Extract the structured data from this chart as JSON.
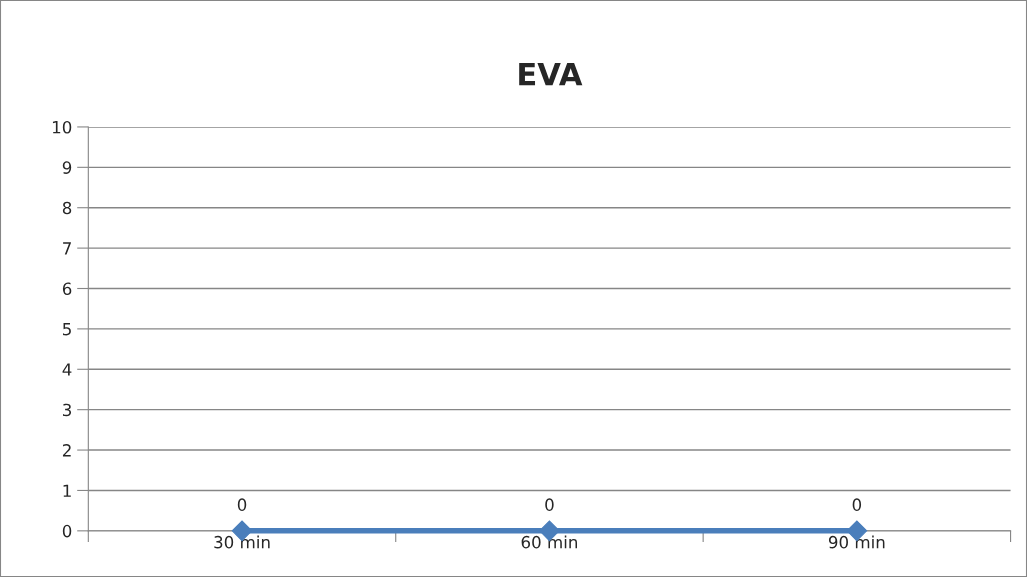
{
  "chart_data": {
    "type": "line",
    "title": "EVA",
    "categories": [
      "30 min",
      "60 min",
      "90 min"
    ],
    "series": [
      {
        "color": "#4a7ebb",
        "values": [
          0,
          0,
          0
        ]
      }
    ],
    "ylim": [
      0,
      10
    ],
    "yticks": [
      0,
      1,
      2,
      3,
      4,
      5,
      6,
      7,
      8,
      9,
      10
    ],
    "grid": "y",
    "marker": "diamond",
    "line_style": "solid",
    "data_labels": true,
    "legend": false
  }
}
